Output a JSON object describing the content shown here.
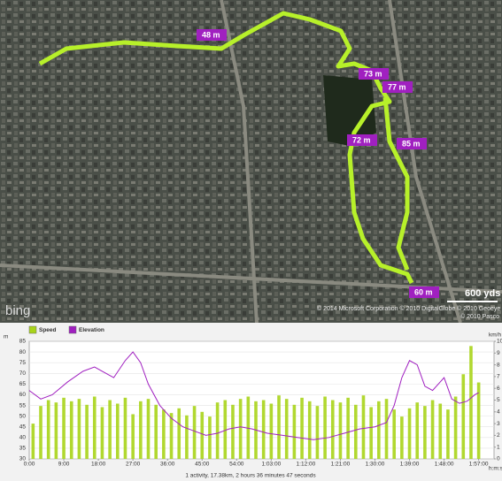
{
  "map": {
    "elevation_labels": [
      "48 m",
      "73 m",
      "77 m",
      "72 m",
      "85 m",
      "60 m"
    ],
    "scale": "600 yds",
    "logo": "bing",
    "copyright": "© 2014 Microsoft Corporation  © 2010 DigitalGlobe  © 2010 Geoeye",
    "copyright2": "© 2010 Pasco"
  },
  "chart_data": {
    "type": "bar",
    "y_label": "m",
    "y2_label": "km/h",
    "x_label": "h:m:s",
    "footer": "1 activity, 17.38km, 2 hours 36 minutes 47 seconds",
    "xlim": [
      0,
      121
    ],
    "xticks": [
      {
        "value": 0,
        "label": "0:00"
      },
      {
        "value": 9,
        "label": "9:00"
      },
      {
        "value": 18,
        "label": "18:00"
      },
      {
        "value": 27,
        "label": "27:00"
      },
      {
        "value": 36,
        "label": "36:00"
      },
      {
        "value": 45,
        "label": "45:00"
      },
      {
        "value": 54,
        "label": "54:00"
      },
      {
        "value": 63,
        "label": "1:03:00"
      },
      {
        "value": 72,
        "label": "1:12:00"
      },
      {
        "value": 81,
        "label": "1:21:00"
      },
      {
        "value": 90,
        "label": "1:30:00"
      },
      {
        "value": 99,
        "label": "1:39:00"
      },
      {
        "value": 108,
        "label": "1:48:00"
      },
      {
        "value": 117,
        "label": "1:57:00"
      }
    ],
    "ylim": [
      30,
      85
    ],
    "yticks": [
      30,
      35,
      40,
      45,
      50,
      55,
      60,
      65,
      70,
      75,
      80,
      85
    ],
    "y2lim": [
      0,
      10
    ],
    "y2ticks": [
      0,
      1,
      2,
      3,
      4,
      5,
      6,
      7,
      8,
      9,
      10
    ],
    "grid": true,
    "series": [
      {
        "name": "Speed",
        "type": "bar",
        "axis": "y2",
        "color": "#a8d41a",
        "x": [
          1,
          3,
          5,
          7,
          9,
          11,
          13,
          15,
          17,
          19,
          21,
          23,
          25,
          27,
          29,
          31,
          33,
          35,
          37,
          39,
          41,
          43,
          45,
          47,
          49,
          51,
          53,
          55,
          57,
          59,
          61,
          63,
          65,
          67,
          69,
          71,
          73,
          75,
          77,
          79,
          81,
          83,
          85,
          87,
          89,
          91,
          93,
          95,
          97,
          99,
          101,
          103,
          105,
          107,
          109,
          111,
          113,
          115,
          117
        ],
        "values": [
          3.0,
          4.5,
          5.0,
          4.8,
          5.2,
          4.9,
          5.1,
          4.6,
          5.3,
          4.4,
          5.0,
          4.7,
          5.2,
          3.8,
          4.9,
          5.1,
          4.6,
          4.2,
          3.9,
          4.3,
          3.7,
          4.5,
          4.0,
          3.6,
          4.8,
          5.0,
          4.6,
          5.1,
          5.3,
          4.9,
          5.0,
          4.7,
          5.4,
          5.1,
          4.6,
          5.2,
          4.9,
          4.5,
          5.3,
          5.0,
          4.8,
          5.2,
          4.6,
          5.4,
          4.4,
          4.9,
          5.1,
          4.2,
          3.6,
          4.3,
          4.8,
          4.5,
          5.0,
          4.7,
          4.2,
          5.3,
          7.2,
          9.6,
          6.5
        ]
      },
      {
        "name": "Elevation",
        "type": "line",
        "axis": "y",
        "color": "#a020c0",
        "x": [
          0,
          3,
          6,
          10,
          14,
          17,
          20,
          22,
          25,
          27,
          29,
          31,
          34,
          37,
          40,
          43,
          46,
          49,
          52,
          55,
          58,
          62,
          66,
          70,
          74,
          78,
          82,
          86,
          90,
          93,
          95,
          97,
          99,
          101,
          103,
          105,
          107,
          108,
          110,
          112,
          114,
          116,
          117
        ],
        "values": [
          62,
          58,
          60,
          66,
          71,
          73,
          70,
          68,
          76,
          80,
          75,
          65,
          55,
          49,
          45,
          43,
          41,
          42,
          44,
          45,
          44,
          42,
          41,
          40,
          39,
          40,
          42,
          44,
          45,
          47,
          55,
          68,
          76,
          74,
          64,
          62,
          66,
          68,
          58,
          56,
          57,
          60,
          61
        ]
      }
    ]
  }
}
